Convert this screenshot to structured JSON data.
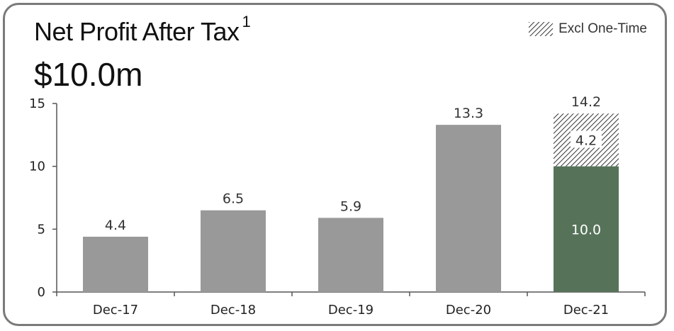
{
  "header": {
    "title": "Net Profit After Tax",
    "footnote_mark": "1",
    "headline_value": "$10.0m"
  },
  "legend": {
    "label": "Excl One-Time",
    "pattern": "hatched"
  },
  "colors": {
    "bar": "#999999",
    "highlight_bar": "#56735a",
    "hatch": "#333333",
    "axis": "#555555",
    "border": "#7a7a7a"
  },
  "chart_data": {
    "type": "bar",
    "title": "Net Profit After Tax",
    "categories": [
      "Dec-17",
      "Dec-18",
      "Dec-19",
      "Dec-20",
      "Dec-21"
    ],
    "values": [
      4.4,
      6.5,
      5.9,
      13.3,
      10.0
    ],
    "value_labels": [
      "4.4",
      "6.5",
      "5.9",
      "13.3",
      "10.0"
    ],
    "stacked_one_time": {
      "category": "Dec-21",
      "value": 4.2,
      "label": "4.2",
      "total": 14.2,
      "total_label": "14.2"
    },
    "ylim": [
      0,
      15
    ],
    "yticks": [
      0,
      5,
      10,
      15
    ],
    "grid": false,
    "legend_position": "top-right"
  }
}
